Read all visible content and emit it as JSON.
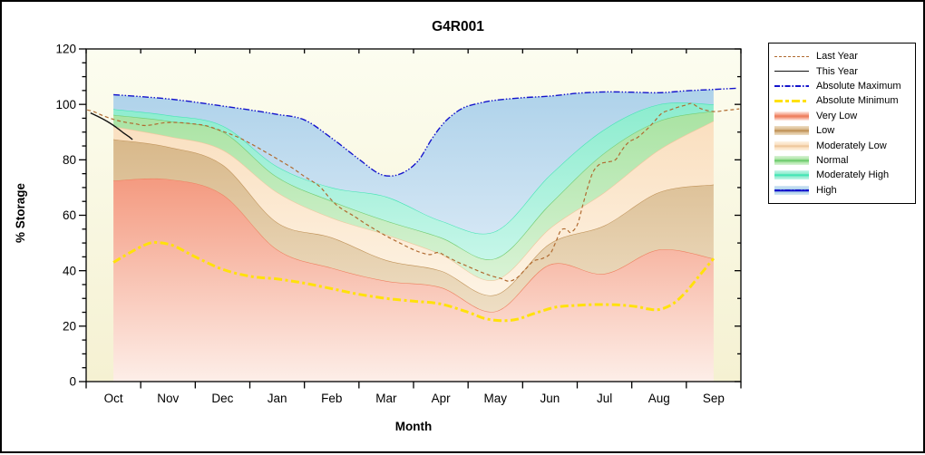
{
  "figure": {
    "title": "G4R001"
  },
  "axes": {
    "x_label": "Month",
    "y_label": "% Storage",
    "y_ticks": [
      "0",
      "20",
      "40",
      "60",
      "80",
      "100",
      "120"
    ],
    "x_month_labels": [
      "Oct",
      "Nov",
      "Dec",
      "Jan",
      "Feb",
      "Mar",
      "Apr",
      "May",
      "Jun",
      "Jul",
      "Aug",
      "Sep"
    ]
  },
  "colors": {
    "figure_border": "#000000",
    "axis": "#000000",
    "plot_bg_top": "#fcfdf0",
    "plot_bg_bottom": "#f5f1d2",
    "last_year": "#b06a30",
    "this_year": "#111111",
    "absolute_maximum": "#1414cc",
    "absolute_minimum": "#ffe10a"
  },
  "legend": {
    "items": [
      {
        "label": "Last Year",
        "kind": "line",
        "style": "dashed",
        "color": "#b06a30"
      },
      {
        "label": "This Year",
        "kind": "line",
        "style": "solid",
        "color": "#111111"
      },
      {
        "label": "Absolute Maximum",
        "kind": "line",
        "style": "dashdot",
        "color": "#1414cc"
      },
      {
        "label": "Absolute Minimum",
        "kind": "line",
        "style": "thickdash",
        "color": "#ffe10a"
      },
      {
        "label": "Very Low",
        "kind": "band",
        "fill_top": "#f49a80",
        "fill_bottom": "#fdeee8",
        "line": "#ee8160"
      },
      {
        "label": "Low",
        "kind": "band",
        "fill_top": "#d8b88a",
        "fill_bottom": "#eedec4",
        "line": "#c1945a"
      },
      {
        "label": "Moderately Low",
        "kind": "band",
        "fill_top": "#fadfbf",
        "fill_bottom": "#fdf3e4",
        "line": "#eec89e"
      },
      {
        "label": "Normal",
        "kind": "band",
        "fill_top": "#a9e3a2",
        "fill_bottom": "#d9f3d6",
        "line": "#70cc70"
      },
      {
        "label": "Moderately High",
        "kind": "band",
        "fill_top": "#8cecce",
        "fill_bottom": "#c6f6e9",
        "line": "#45e5b5"
      },
      {
        "label": "High",
        "kind": "band",
        "fill_top": "#aed2ea",
        "fill_bottom": "#d3e6f4",
        "line": "#1414cc",
        "overlay_dash": true
      }
    ]
  },
  "chart_data": {
    "type": "area",
    "title": "G4R001",
    "xlabel": "Month",
    "ylabel": "% Storage",
    "ylim": [
      0,
      120
    ],
    "grid": false,
    "legend_position": "right",
    "x_categories": [
      "Oct",
      "Nov",
      "Dec",
      "Jan",
      "Feb",
      "Mar",
      "Apr",
      "May",
      "Jun",
      "Jul",
      "Aug",
      "Sep"
    ],
    "band_month_centers": [
      0.5,
      1.5,
      2.5,
      3.5,
      4.5,
      5.5,
      6.5,
      7.5,
      8.5,
      9.5,
      10.5,
      11.5
    ],
    "bands": [
      {
        "name": "very_low",
        "label": "Very Low",
        "base": 0,
        "top": [
          72.5,
          73.0,
          67.5,
          47.6,
          41.0,
          36.3,
          34.0,
          25.3,
          42.2,
          38.9,
          47.6,
          44.4
        ]
      },
      {
        "name": "low",
        "label": "Low",
        "top": [
          87.4,
          84.7,
          78.2,
          57.4,
          52.0,
          43.8,
          40.0,
          31.3,
          49.8,
          56.3,
          68.3,
          71.1
        ]
      },
      {
        "name": "moderately_low",
        "label": "Moderately Low",
        "top": [
          92.0,
          88.5,
          83.6,
          68.3,
          59.1,
          53.0,
          46.0,
          36.7,
          55.3,
          68.3,
          83.6,
          94.0
        ]
      },
      {
        "name": "normal",
        "label": "Normal",
        "top": [
          96.2,
          94.0,
          90.1,
          73.8,
          65.1,
          58.0,
          52.0,
          44.4,
          64.0,
          82.5,
          94.0,
          97.6
        ]
      },
      {
        "name": "moderately_high",
        "label": "Moderately High",
        "top": [
          98.3,
          96.1,
          92.3,
          77.6,
          70.0,
          66.7,
          58.0,
          54.2,
          74.5,
          91.0,
          100.0,
          100.0
        ]
      },
      {
        "name": "high",
        "label": "High",
        "top": "absolute_maximum"
      }
    ],
    "series": {
      "absolute_maximum": [
        [
          0.5,
          103.5
        ],
        [
          1.0,
          102.8
        ],
        [
          1.5,
          102.0
        ],
        [
          2.0,
          100.8
        ],
        [
          2.5,
          99.4
        ],
        [
          3.0,
          98.0
        ],
        [
          3.5,
          96.4
        ],
        [
          4.0,
          94.4
        ],
        [
          4.5,
          87.8
        ],
        [
          5.0,
          80.2
        ],
        [
          5.35,
          75.2
        ],
        [
          5.6,
          74.2
        ],
        [
          5.85,
          75.8
        ],
        [
          6.1,
          80.0
        ],
        [
          6.35,
          88.0
        ],
        [
          6.6,
          94.2
        ],
        [
          6.9,
          98.6
        ],
        [
          7.2,
          100.4
        ],
        [
          7.5,
          101.5
        ],
        [
          8.0,
          102.4
        ],
        [
          8.5,
          103.0
        ],
        [
          9.0,
          104.0
        ],
        [
          9.5,
          104.5
        ],
        [
          10.0,
          104.4
        ],
        [
          10.5,
          104.2
        ],
        [
          11.0,
          104.9
        ],
        [
          11.5,
          105.4
        ],
        [
          11.92,
          105.8
        ]
      ],
      "absolute_minimum": [
        [
          0.5,
          43.0
        ],
        [
          0.8,
          46.5
        ],
        [
          1.1,
          49.5
        ],
        [
          1.3,
          50.2
        ],
        [
          1.6,
          49.0
        ],
        [
          2.0,
          45.0
        ],
        [
          2.5,
          40.5
        ],
        [
          3.0,
          38.0
        ],
        [
          3.5,
          37.0
        ],
        [
          4.0,
          35.5
        ],
        [
          4.5,
          33.5
        ],
        [
          5.0,
          31.5
        ],
        [
          5.5,
          30.0
        ],
        [
          6.0,
          29.0
        ],
        [
          6.5,
          28.0
        ],
        [
          7.0,
          25.0
        ],
        [
          7.3,
          22.8
        ],
        [
          7.6,
          22.0
        ],
        [
          7.9,
          22.5
        ],
        [
          8.2,
          24.5
        ],
        [
          8.6,
          26.8
        ],
        [
          9.0,
          27.5
        ],
        [
          9.4,
          27.8
        ],
        [
          9.8,
          27.6
        ],
        [
          10.1,
          27.0
        ],
        [
          10.3,
          26.2
        ],
        [
          10.5,
          26.0
        ],
        [
          10.75,
          28.0
        ],
        [
          11.0,
          32.5
        ],
        [
          11.25,
          38.5
        ],
        [
          11.5,
          44.4
        ]
      ],
      "last_year": [
        [
          0.02,
          98.0
        ],
        [
          0.15,
          97.3
        ],
        [
          0.3,
          96.0
        ],
        [
          0.5,
          94.6
        ],
        [
          0.7,
          93.6
        ],
        [
          0.9,
          93.0
        ],
        [
          1.05,
          92.4
        ],
        [
          1.2,
          92.6
        ],
        [
          1.4,
          93.3
        ],
        [
          1.6,
          93.5
        ],
        [
          1.8,
          93.3
        ],
        [
          2.0,
          92.9
        ],
        [
          2.2,
          92.3
        ],
        [
          2.4,
          91.0
        ],
        [
          2.6,
          89.6
        ],
        [
          2.8,
          88.0
        ],
        [
          3.0,
          86.0
        ],
        [
          3.2,
          83.8
        ],
        [
          3.4,
          81.5
        ],
        [
          3.6,
          79.2
        ],
        [
          3.8,
          76.8
        ],
        [
          4.0,
          74.0
        ],
        [
          4.15,
          72.2
        ],
        [
          4.3,
          70.0
        ],
        [
          4.45,
          66.5
        ],
        [
          4.6,
          63.5
        ],
        [
          4.75,
          61.5
        ],
        [
          4.9,
          59.8
        ],
        [
          5.1,
          57.2
        ],
        [
          5.3,
          54.8
        ],
        [
          5.5,
          52.5
        ],
        [
          5.7,
          50.5
        ],
        [
          5.9,
          48.5
        ],
        [
          6.1,
          46.8
        ],
        [
          6.3,
          45.8
        ],
        [
          6.45,
          46.6
        ],
        [
          6.6,
          45.2
        ],
        [
          6.8,
          43.2
        ],
        [
          7.0,
          41.5
        ],
        [
          7.2,
          39.8
        ],
        [
          7.4,
          38.3
        ],
        [
          7.6,
          37.2
        ],
        [
          7.75,
          36.2
        ],
        [
          7.9,
          37.5
        ],
        [
          8.05,
          40.5
        ],
        [
          8.2,
          43.5
        ],
        [
          8.35,
          44.3
        ],
        [
          8.5,
          46.0
        ],
        [
          8.6,
          50.0
        ],
        [
          8.7,
          54.5
        ],
        [
          8.8,
          55.0
        ],
        [
          8.88,
          53.8
        ],
        [
          9.0,
          56.5
        ],
        [
          9.1,
          63.5
        ],
        [
          9.2,
          70.5
        ],
        [
          9.3,
          76.0
        ],
        [
          9.42,
          78.5
        ],
        [
          9.55,
          79.2
        ],
        [
          9.7,
          80.0
        ],
        [
          9.82,
          83.5
        ],
        [
          9.95,
          86.5
        ],
        [
          10.1,
          88.0
        ],
        [
          10.25,
          90.5
        ],
        [
          10.4,
          93.5
        ],
        [
          10.55,
          96.8
        ],
        [
          10.7,
          98.0
        ],
        [
          10.85,
          99.0
        ],
        [
          11.0,
          99.8
        ],
        [
          11.1,
          100.3
        ],
        [
          11.25,
          98.6
        ],
        [
          11.4,
          97.7
        ],
        [
          11.55,
          97.4
        ],
        [
          11.7,
          97.8
        ],
        [
          11.85,
          98.1
        ],
        [
          11.97,
          98.4
        ]
      ],
      "this_year": [
        [
          0.08,
          96.9
        ],
        [
          0.2,
          95.8
        ],
        [
          0.32,
          94.6
        ],
        [
          0.44,
          93.2
        ],
        [
          0.56,
          91.6
        ],
        [
          0.68,
          89.8
        ],
        [
          0.78,
          88.4
        ],
        [
          0.85,
          87.3
        ]
      ]
    }
  }
}
